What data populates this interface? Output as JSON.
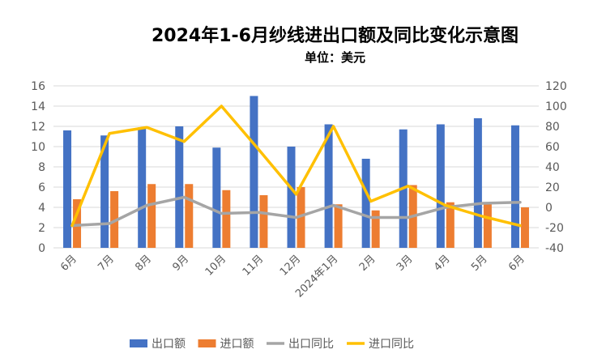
{
  "chart_data": {
    "type": "bar",
    "title": "2024年1-6月纱线进出口额及同比变化示意图",
    "subtitle": "单位：美元",
    "categories": [
      "6月",
      "7月",
      "8月",
      "9月",
      "10月",
      "11月",
      "12月",
      "2024年1月",
      "2月",
      "3月",
      "4月",
      "5月",
      "6月"
    ],
    "series": [
      {
        "name": "出口额",
        "type": "bar",
        "axis": "left",
        "color": "#4472C4",
        "values": [
          11.6,
          11.1,
          11.9,
          12.0,
          9.9,
          15.0,
          10.0,
          12.2,
          8.8,
          11.7,
          12.2,
          12.8,
          12.1
        ]
      },
      {
        "name": "进口额",
        "type": "bar",
        "axis": "left",
        "color": "#ED7D31",
        "values": [
          4.8,
          5.6,
          6.3,
          6.3,
          5.7,
          5.2,
          6.0,
          4.3,
          3.7,
          6.2,
          4.5,
          4.3,
          4.0
        ]
      },
      {
        "name": "出口同比",
        "type": "line",
        "axis": "right",
        "color": "#A5A5A5",
        "values": [
          -18,
          -16,
          2,
          10,
          -6,
          -5,
          -10,
          2,
          -10,
          -10,
          0,
          4,
          5
        ]
      },
      {
        "name": "进口同比",
        "type": "line",
        "axis": "right",
        "color": "#FFC000",
        "values": [
          -18,
          73,
          79,
          65,
          100,
          57,
          13,
          80,
          6,
          21,
          2,
          -9,
          -18
        ]
      }
    ],
    "ylim_left": [
      0,
      16
    ],
    "yticks_left": [
      "0",
      "2",
      "4",
      "6",
      "8",
      "10",
      "12",
      "14",
      "16"
    ],
    "ylim_right": [
      -40,
      120
    ],
    "yticks_right": [
      "-40",
      "-20",
      "0",
      "20",
      "40",
      "60",
      "80",
      "100",
      "120"
    ],
    "grid": true,
    "legend_position": "bottom"
  }
}
